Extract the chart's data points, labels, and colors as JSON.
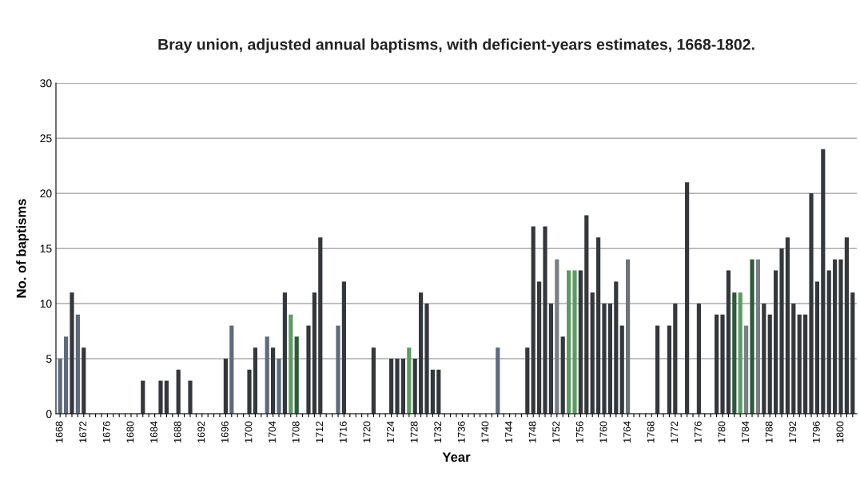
{
  "chart_data": {
    "type": "bar",
    "title": "Bray union, adjusted annual baptisms, with deficient-years estimates, 1668-1802.",
    "xlabel": "Year",
    "ylabel": "No. of baptisms",
    "categories": [
      "1668",
      null,
      null,
      null,
      "1672",
      null,
      null,
      null,
      "1676",
      null,
      null,
      null,
      "1680",
      null,
      null,
      null,
      "1684",
      null,
      null,
      null,
      "1688",
      null,
      null,
      null,
      "1692",
      null,
      null,
      null,
      "1696",
      null,
      null,
      null,
      "1700",
      null,
      null,
      null,
      "1704",
      null,
      null,
      null,
      "1708",
      null,
      null,
      null,
      "1712",
      null,
      null,
      null,
      "1716",
      null,
      null,
      null,
      "1720",
      null,
      null,
      null,
      "1724",
      null,
      null,
      null,
      "1728",
      null,
      null,
      null,
      "1732",
      null,
      null,
      null,
      "1736",
      null,
      null,
      null,
      "1740",
      null,
      null,
      null,
      "1744",
      null,
      null,
      null,
      "1748",
      null,
      null,
      null,
      "1752",
      null,
      null,
      null,
      "1756",
      null,
      null,
      null,
      "1760",
      null,
      null,
      null,
      "1764",
      null,
      null,
      null,
      "1768",
      null,
      null,
      null,
      "1772",
      null,
      null,
      null,
      "1776",
      null,
      null,
      null,
      "1780",
      null,
      null,
      null,
      "1784",
      null,
      null,
      null,
      "1788",
      null,
      null,
      null,
      "1792",
      null,
      null,
      null,
      "1796",
      null,
      null,
      null,
      "1800",
      null,
      null
    ],
    "values": [
      5,
      7,
      11,
      9,
      6,
      null,
      null,
      null,
      null,
      null,
      null,
      null,
      null,
      null,
      3,
      null,
      null,
      3,
      3,
      null,
      4,
      null,
      3,
      null,
      null,
      null,
      null,
      null,
      5,
      8,
      null,
      null,
      4,
      6,
      null,
      7,
      6,
      5,
      11,
      9,
      7,
      null,
      8,
      11,
      16,
      null,
      null,
      8,
      12,
      null,
      null,
      null,
      null,
      6,
      null,
      null,
      5,
      5,
      5,
      6,
      5,
      11,
      10,
      4,
      4,
      null,
      null,
      null,
      null,
      null,
      null,
      null,
      null,
      null,
      6,
      null,
      null,
      null,
      null,
      6,
      17,
      12,
      17,
      10,
      14,
      7,
      13,
      13,
      13,
      18,
      11,
      16,
      10,
      10,
      12,
      8,
      14,
      null,
      null,
      null,
      null,
      8,
      null,
      8,
      10,
      null,
      21,
      null,
      10,
      null,
      null,
      9,
      9,
      13,
      11,
      11,
      8,
      14,
      14,
      10,
      9,
      13,
      15,
      16,
      10,
      9,
      9,
      20,
      12,
      24,
      13,
      14,
      14,
      16,
      11
    ],
    "colors": [
      "#5d6b7d",
      "#5d6b7d",
      "#34373c",
      "#5d6b7d",
      "#34373c",
      "#34373c",
      "#34373c",
      "#34373c",
      "#34373c",
      "#34373c",
      "#34373c",
      "#34373c",
      "#34373c",
      "#34373c",
      "#34373c",
      "#34373c",
      "#34373c",
      "#34373c",
      "#34373c",
      "#34373c",
      "#34373c",
      "#34373c",
      "#34373c",
      "#34373c",
      "#34373c",
      "#34373c",
      "#34373c",
      "#34373c",
      "#34373c",
      "#5d6b7d",
      "#34373c",
      "#34373c",
      "#34373c",
      "#34373c",
      "#34373c",
      "#5d6b7d",
      "#34373c",
      "#5d6b7d",
      "#34373c",
      "#5c9c64",
      "#2d5a3a",
      "#34373c",
      "#34373c",
      "#34373c",
      "#34373c",
      "#34373c",
      "#34373c",
      "#5d6b7d",
      "#34373c",
      "#34373c",
      "#34373c",
      "#34373c",
      "#34373c",
      "#34373c",
      "#34373c",
      "#34373c",
      "#34373c",
      "#34373c",
      "#34373c",
      "#5c9c64",
      "#34373c",
      "#34373c",
      "#34373c",
      "#34373c",
      "#34373c",
      "#34373c",
      "#34373c",
      "#34373c",
      "#34373c",
      "#34373c",
      "#34373c",
      "#34373c",
      "#34373c",
      "#34373c",
      "#5d6b7d",
      "#34373c",
      "#34373c",
      "#34373c",
      "#34373c",
      "#34373c",
      "#34373c",
      "#34373c",
      "#34373c",
      "#34373c",
      "#7a7f85",
      "#34373c",
      "#5c9c64",
      "#5c9c64",
      "#34373c",
      "#34373c",
      "#34373c",
      "#34373c",
      "#34373c",
      "#34373c",
      "#34373c",
      "#34373c",
      "#6d7378",
      "#34373c",
      "#34373c",
      "#34373c",
      "#34373c",
      "#34373c",
      "#34373c",
      "#34373c",
      "#34373c",
      "#34373c",
      "#34373c",
      "#34373c",
      "#34373c",
      "#34373c",
      "#34373c",
      "#34373c",
      "#34373c",
      "#34373c",
      "#2d5a3a",
      "#5c9c64",
      "#7a7f85",
      "#2d5a3a",
      "#7a7f85",
      "#34373c",
      "#34373c",
      "#34373c",
      "#34373c",
      "#34373c",
      "#34373c",
      "#34373c",
      "#34373c",
      "#34373c",
      "#34373c",
      "#34373c",
      "#34373c",
      "#34373c",
      "#34373c",
      "#34373c",
      "#34373c"
    ],
    "ylim": [
      0,
      30
    ],
    "yticks": [
      0,
      5,
      10,
      15,
      20,
      25,
      30
    ],
    "grid": "y"
  }
}
